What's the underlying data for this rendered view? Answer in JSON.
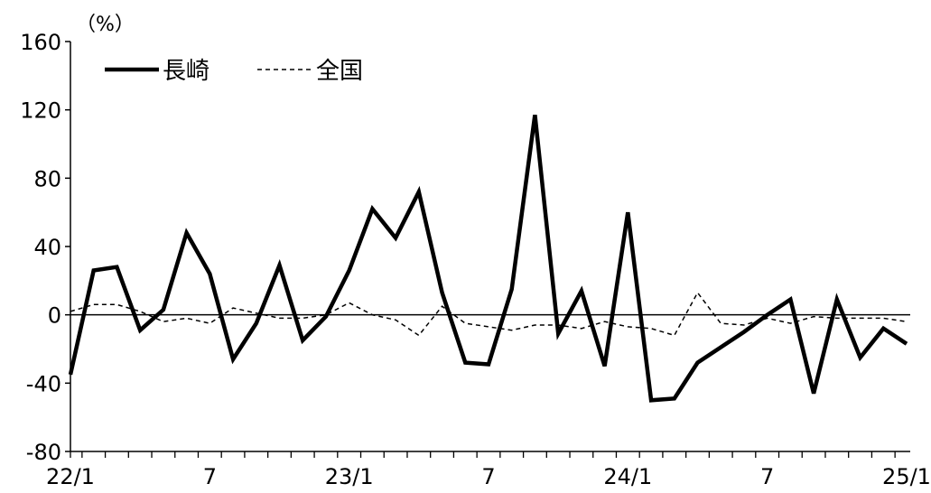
{
  "chart_data": {
    "type": "line",
    "unit_label": "（%）",
    "ylim": [
      -80,
      160
    ],
    "y_ticks": [
      160,
      120,
      80,
      40,
      0,
      -40,
      -80
    ],
    "x_tick_labels": [
      {
        "index": 0,
        "label": "22/1"
      },
      {
        "index": 6,
        "label": "7"
      },
      {
        "index": 12,
        "label": "23/1"
      },
      {
        "index": 18,
        "label": "7"
      },
      {
        "index": 24,
        "label": "24/1"
      },
      {
        "index": 30,
        "label": "7"
      },
      {
        "index": 36,
        "label": "25/1"
      }
    ],
    "legend": {
      "placement": "top-left"
    },
    "series": [
      {
        "name": "長崎",
        "style": "solid-thick",
        "color": "#000000",
        "values": [
          -35,
          26,
          28,
          -9,
          3,
          48,
          24,
          -26,
          -5,
          29,
          -15,
          -1,
          26,
          62,
          45,
          72,
          13,
          -28,
          -29,
          15,
          117,
          -11,
          14,
          -30,
          60,
          -50,
          -49,
          -28,
          -19,
          -10,
          0,
          9,
          -46,
          9,
          -25,
          -8,
          -17
        ]
      },
      {
        "name": "全国",
        "style": "dashed-thin",
        "color": "#000000",
        "values": [
          2,
          6,
          6,
          2,
          -4,
          -2,
          -5,
          4,
          1,
          -2,
          -2,
          0,
          7,
          0,
          -3,
          -12,
          5,
          -5,
          -7,
          -9,
          -6,
          -6,
          -8,
          -4,
          -7,
          -8,
          -12,
          13,
          -5,
          -6,
          -2,
          -5,
          -1,
          -2,
          -2,
          -2,
          -4
        ]
      }
    ]
  }
}
